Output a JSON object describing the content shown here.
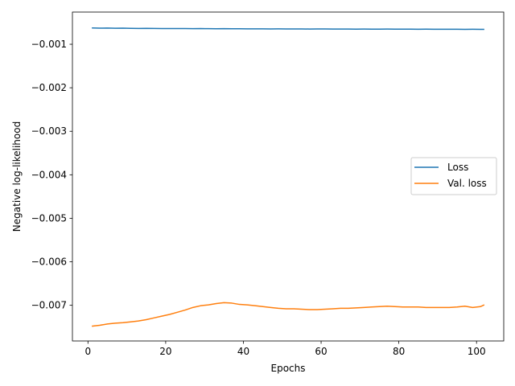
{
  "chart_data": {
    "type": "line",
    "title": "",
    "xlabel": "Epochs",
    "ylabel": "Negative log-likelihood",
    "xlim": [
      -4,
      107
    ],
    "ylim": [
      -0.00782,
      -0.00026
    ],
    "xticks": [
      0,
      20,
      40,
      60,
      80,
      100
    ],
    "xtick_labels": [
      "0",
      "20",
      "40",
      "60",
      "80",
      "100"
    ],
    "yticks": [
      -0.001,
      -0.002,
      -0.003,
      -0.004,
      -0.005,
      -0.006,
      -0.007
    ],
    "ytick_labels": [
      "−0.001",
      "−0.002",
      "−0.003",
      "−0.004",
      "−0.005",
      "−0.006",
      "−0.007"
    ],
    "grid": false,
    "legend_position": "center-right",
    "series": [
      {
        "name": "Loss",
        "color": "#1f77b4",
        "x": [
          1,
          3,
          5,
          7,
          9,
          11,
          13,
          15,
          17,
          19,
          21,
          23,
          25,
          27,
          29,
          31,
          33,
          35,
          37,
          39,
          41,
          43,
          45,
          47,
          49,
          51,
          53,
          55,
          57,
          59,
          61,
          63,
          65,
          67,
          69,
          71,
          73,
          75,
          77,
          79,
          81,
          83,
          85,
          87,
          89,
          91,
          93,
          95,
          97,
          99,
          101,
          102
        ],
        "y": [
          -0.000625,
          -0.00063,
          -0.000628,
          -0.000632,
          -0.00063,
          -0.000634,
          -0.000636,
          -0.000634,
          -0.000636,
          -0.000638,
          -0.00064,
          -0.000638,
          -0.00064,
          -0.000642,
          -0.00064,
          -0.000642,
          -0.000643,
          -0.000641,
          -0.000643,
          -0.000644,
          -0.000645,
          -0.000646,
          -0.000645,
          -0.000647,
          -0.000646,
          -0.000648,
          -0.000649,
          -0.000648,
          -0.00065,
          -0.000649,
          -0.000648,
          -0.00065,
          -0.000651,
          -0.00065,
          -0.000652,
          -0.000651,
          -0.000653,
          -0.000652,
          -0.000651,
          -0.000652,
          -0.000653,
          -0.000652,
          -0.000654,
          -0.000653,
          -0.000655,
          -0.000654,
          -0.000655,
          -0.000656,
          -0.000657,
          -0.000656,
          -0.000658,
          -0.000657
        ]
      },
      {
        "name": "Val. loss",
        "color": "#ff7f0e",
        "x": [
          1,
          3,
          5,
          7,
          9,
          11,
          13,
          15,
          17,
          19,
          21,
          23,
          25,
          27,
          29,
          31,
          33,
          35,
          37,
          39,
          41,
          43,
          45,
          47,
          49,
          51,
          53,
          55,
          57,
          59,
          61,
          63,
          65,
          67,
          69,
          71,
          73,
          75,
          77,
          79,
          81,
          83,
          85,
          87,
          89,
          91,
          93,
          95,
          97,
          99,
          101,
          102
        ],
        "y": [
          -0.00748,
          -0.00746,
          -0.00743,
          -0.00741,
          -0.0074,
          -0.00738,
          -0.00736,
          -0.00733,
          -0.00729,
          -0.00725,
          -0.00721,
          -0.00716,
          -0.00711,
          -0.00705,
          -0.00701,
          -0.00699,
          -0.00696,
          -0.00694,
          -0.00695,
          -0.00698,
          -0.00699,
          -0.00701,
          -0.00703,
          -0.00705,
          -0.00707,
          -0.00708,
          -0.00708,
          -0.00709,
          -0.0071,
          -0.0071,
          -0.00709,
          -0.00708,
          -0.00707,
          -0.00707,
          -0.00706,
          -0.00705,
          -0.00704,
          -0.00703,
          -0.00702,
          -0.00703,
          -0.00704,
          -0.00704,
          -0.00704,
          -0.00705,
          -0.00705,
          -0.00705,
          -0.00705,
          -0.00704,
          -0.00702,
          -0.00705,
          -0.00703,
          -0.00699
        ]
      }
    ]
  }
}
